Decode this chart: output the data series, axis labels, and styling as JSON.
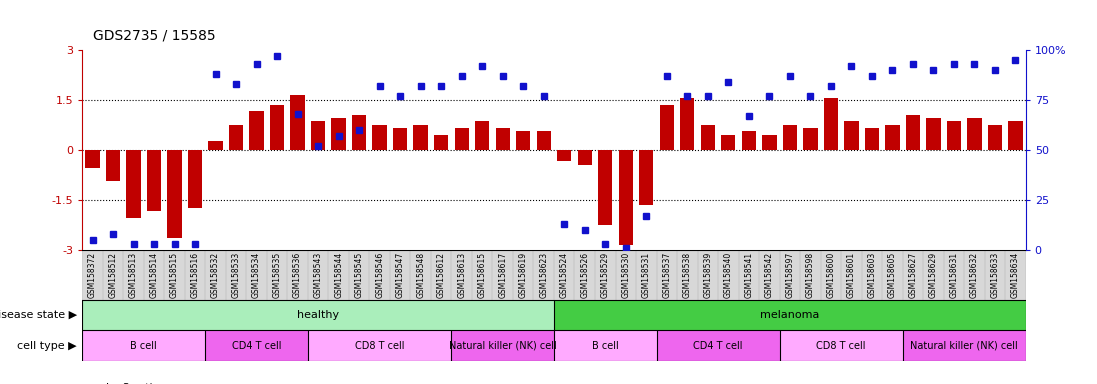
{
  "title": "GDS2735 / 15585",
  "samples": [
    "GSM158372",
    "GSM158512",
    "GSM158513",
    "GSM158514",
    "GSM158515",
    "GSM158516",
    "GSM158532",
    "GSM158533",
    "GSM158534",
    "GSM158535",
    "GSM158536",
    "GSM158543",
    "GSM158544",
    "GSM158545",
    "GSM158546",
    "GSM158547",
    "GSM158548",
    "GSM158612",
    "GSM158613",
    "GSM158615",
    "GSM158617",
    "GSM158619",
    "GSM158623",
    "GSM158524",
    "GSM158526",
    "GSM158529",
    "GSM158530",
    "GSM158531",
    "GSM158537",
    "GSM158538",
    "GSM158539",
    "GSM158540",
    "GSM158541",
    "GSM158542",
    "GSM158597",
    "GSM158598",
    "GSM158600",
    "GSM158601",
    "GSM158603",
    "GSM158605",
    "GSM158627",
    "GSM158629",
    "GSM158631",
    "GSM158632",
    "GSM158633",
    "GSM158634"
  ],
  "log2_ratio": [
    -0.55,
    -0.95,
    -2.05,
    -1.85,
    -2.65,
    -1.75,
    0.25,
    0.75,
    1.15,
    1.35,
    1.65,
    0.85,
    0.95,
    1.05,
    0.75,
    0.65,
    0.75,
    0.45,
    0.65,
    0.85,
    0.65,
    0.55,
    0.55,
    -0.35,
    -0.45,
    -2.25,
    -2.85,
    -1.65,
    1.35,
    1.55,
    0.75,
    0.45,
    0.55,
    0.45,
    0.75,
    0.65,
    1.55,
    0.85,
    0.65,
    0.75,
    1.05,
    0.95,
    0.85,
    0.95,
    0.75,
    0.85
  ],
  "percentile": [
    5,
    8,
    3,
    3,
    3,
    3,
    88,
    83,
    93,
    97,
    68,
    52,
    57,
    60,
    82,
    77,
    82,
    82,
    87,
    92,
    87,
    82,
    77,
    13,
    10,
    3,
    1,
    17,
    87,
    77,
    77,
    84,
    67,
    77,
    87,
    77,
    82,
    92,
    87,
    90,
    93,
    90,
    93,
    93,
    90,
    95
  ],
  "disease_state": {
    "healthy": [
      0,
      23
    ],
    "melanoma": [
      23,
      46
    ]
  },
  "cell_types": [
    {
      "label": "B cell",
      "start": 0,
      "end": 6,
      "color": "#ffaaff"
    },
    {
      "label": "CD4 T cell",
      "start": 6,
      "end": 11,
      "color": "#ee66ee"
    },
    {
      "label": "CD8 T cell",
      "start": 11,
      "end": 18,
      "color": "#ffaaff"
    },
    {
      "label": "Natural killer (NK) cell",
      "start": 18,
      "end": 23,
      "color": "#ee66ee"
    },
    {
      "label": "B cell",
      "start": 23,
      "end": 28,
      "color": "#ffaaff"
    },
    {
      "label": "CD4 T cell",
      "start": 28,
      "end": 34,
      "color": "#ee66ee"
    },
    {
      "label": "CD8 T cell",
      "start": 34,
      "end": 40,
      "color": "#ffaaff"
    },
    {
      "label": "Natural killer (NK) cell",
      "start": 40,
      "end": 46,
      "color": "#ee66ee"
    }
  ],
  "bar_color": "#c00000",
  "dot_color": "#1111cc",
  "ylim": [
    -3,
    3
  ],
  "yticks_left": [
    -3,
    -1.5,
    0,
    1.5,
    3
  ],
  "yticks_right": [
    0,
    25,
    50,
    75,
    100
  ],
  "dotted_lines": [
    -1.5,
    0,
    1.5
  ],
  "healthy_color": "#aaeebb",
  "melanoma_color": "#44cc44",
  "sample_bg_color": "#d8d8d8",
  "right_axis_color": "#1111cc"
}
